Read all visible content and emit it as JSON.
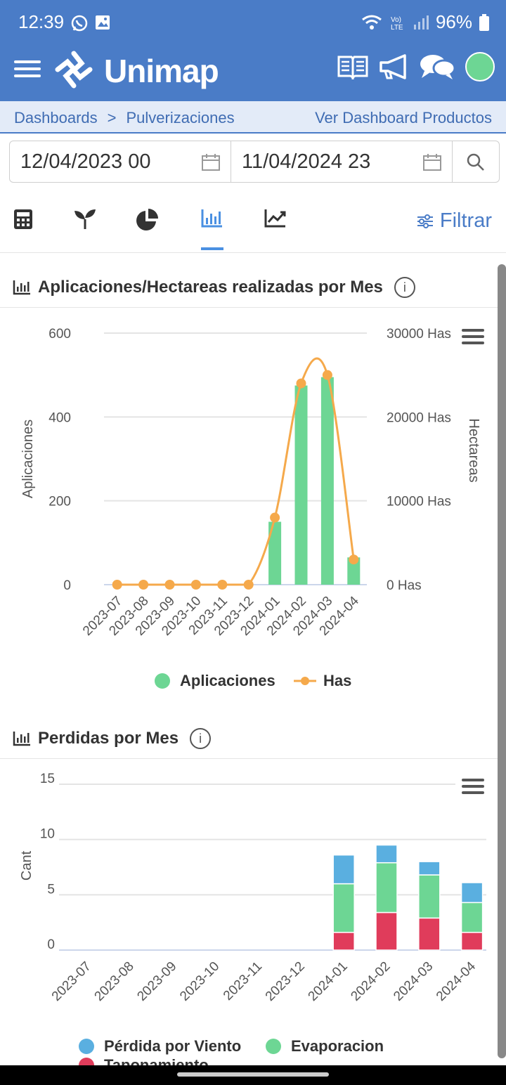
{
  "status": {
    "time": "12:39",
    "battery": "96%"
  },
  "header": {
    "app_name": "Unimap"
  },
  "breadcrumb": {
    "root": "Dashboards",
    "separator": ">",
    "current": "Pulverizaciones",
    "link": "Ver Dashboard Productos"
  },
  "dates": {
    "from": "12/04/2023 00",
    "to": "11/04/2024 23"
  },
  "toolbar": {
    "filter_label": "Filtrar"
  },
  "sections": {
    "apps_title": "Aplicaciones/Hectareas realizadas por Mes",
    "losses_title": "Perdidas por Mes"
  },
  "colors": {
    "primary": "#4a7cc7",
    "green": "#6dd694",
    "orange": "#f5a94b",
    "blue": "#5aafe0",
    "red": "#e03c5b"
  },
  "chart_data": [
    {
      "type": "bar",
      "categories": [
        "2023-07",
        "2023-08",
        "2023-09",
        "2023-10",
        "2023-11",
        "2023-12",
        "2024-01",
        "2024-02",
        "2024-03",
        "2024-04"
      ],
      "series": [
        {
          "name": "Aplicaciones",
          "type": "bar",
          "axis": "left",
          "values": [
            0,
            0,
            0,
            0,
            0,
            0,
            150,
            475,
            495,
            65
          ]
        },
        {
          "name": "Has",
          "type": "line",
          "axis": "right",
          "values": [
            0,
            0,
            0,
            0,
            0,
            0,
            8000,
            24000,
            25000,
            3000
          ]
        }
      ],
      "ylabel": "Aplicaciones",
      "y2label": "Hectareas",
      "ylim": [
        0,
        600
      ],
      "y2lim": [
        0,
        30000
      ],
      "yticks": [
        "0",
        "200",
        "400",
        "600"
      ],
      "y2ticks": [
        "0 Has",
        "10000 Has",
        "20000 Has",
        "30000 Has"
      ],
      "legend": "bottom"
    },
    {
      "type": "bar",
      "stacked": true,
      "categories": [
        "2023-07",
        "2023-08",
        "2023-09",
        "2023-10",
        "2023-11",
        "2023-12",
        "2024-01",
        "2024-02",
        "2024-03",
        "2024-04"
      ],
      "series": [
        {
          "name": "Taponamiento",
          "values": [
            0,
            0,
            0,
            0,
            0,
            0,
            1.6,
            3.4,
            2.9,
            1.6
          ]
        },
        {
          "name": "Evaporacion",
          "values": [
            0,
            0,
            0,
            0,
            0,
            0,
            4.4,
            4.5,
            3.9,
            2.7
          ]
        },
        {
          "name": "Pérdida por Viento",
          "values": [
            0,
            0,
            0,
            0,
            0,
            0,
            2.6,
            1.6,
            1.2,
            1.8
          ]
        }
      ],
      "ylabel": "Cant",
      "ylim": [
        0,
        15
      ],
      "yticks": [
        "0",
        "5",
        "10",
        "15"
      ],
      "legend": "bottom"
    }
  ]
}
